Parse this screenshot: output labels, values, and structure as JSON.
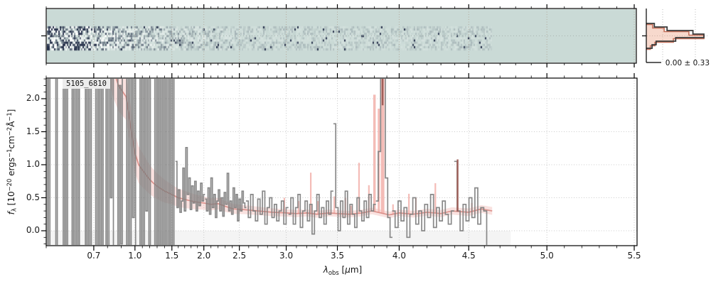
{
  "figure": {
    "annotation": "5105_6810",
    "xlabel_parts": [
      {
        "t": "λ",
        "s": "i"
      },
      {
        "t": "obs",
        "s": "sub"
      },
      {
        "t": " [",
        "s": ""
      },
      {
        "t": "μ",
        "s": "i"
      },
      {
        "t": "m]",
        "s": ""
      }
    ],
    "ylabel_parts": [
      {
        "t": "f",
        "s": "i"
      },
      {
        "t": "λ",
        "s": "sub"
      },
      {
        "t": " [10",
        "s": ""
      },
      {
        "t": "−20",
        "s": "sup"
      },
      {
        "t": " ergs",
        "s": ""
      },
      {
        "t": "−1",
        "s": "sup"
      },
      {
        "t": "cm",
        "s": ""
      },
      {
        "t": "−2",
        "s": "sup"
      },
      {
        "t": "Å",
        "s": ""
      },
      {
        "t": "−1",
        "s": "sup"
      },
      {
        "t": "]",
        "s": ""
      }
    ],
    "colors": {
      "spectrum_gray": "#7f7f7f",
      "model_red": "#d98b85",
      "model_band": "#efa9a2",
      "emission_pink": "#f3b5b0",
      "emission_dark": "#9c5a54",
      "grid": "#c9c9c9",
      "grid_2d": "#b4aa9c",
      "panel_2d_bg": "#cadad6",
      "noise_dark": "#26304a",
      "zero_shade": "#f4f4f4",
      "hist_dark": "#3a3a3a",
      "hist_salmon": "#c4705a",
      "hist_fill": "rgba(235,160,130,0.4)"
    }
  },
  "chart_data": {
    "type": "line",
    "title": "",
    "xlabel": "λ_obs [μm]",
    "ylabel": "f_λ [10^-20 ergs^-1 cm^-2 Å^-1]",
    "xlim": [
      0.6,
      5.52
    ],
    "ylim": [
      -0.23,
      2.31
    ],
    "grid": true,
    "x_ticks": [
      0.7,
      1.0,
      1.5,
      2.0,
      2.5,
      3.0,
      3.5,
      4.0,
      4.5,
      5.0,
      5.5
    ],
    "x_tick_labels": [
      "0.7",
      "1.0",
      "1.5",
      "2.0",
      "2.5",
      "3.0",
      "3.5",
      "4.0",
      "4.5",
      "5.0",
      "5.5"
    ],
    "y_ticks": [
      0.0,
      0.5,
      1.0,
      1.5,
      2.0
    ],
    "y_tick_labels": [
      "0.0",
      "0.5",
      "1.0",
      "1.5",
      "2.0"
    ],
    "x_minor_step": 0.1,
    "axis_note": "non-linear NIRSpec prism wavelength axis; anchors map wavelength (μm) to fractional plot position",
    "wave_to_frac_anchors": [
      [
        0.6,
        0.0
      ],
      [
        0.7,
        0.0805
      ],
      [
        1.0,
        0.1502
      ],
      [
        1.5,
        0.2127
      ],
      [
        2.0,
        0.2668
      ],
      [
        2.5,
        0.3269
      ],
      [
        3.0,
        0.4062
      ],
      [
        3.5,
        0.4928
      ],
      [
        4.0,
        0.5974
      ],
      [
        4.5,
        0.7151
      ],
      [
        5.0,
        0.8474
      ],
      [
        5.5,
        0.9952
      ]
    ],
    "zero_shade_frac_range": [
      0.0,
      0.786
    ],
    "spectrum": {
      "name": "observed flux (gray step)",
      "segments": [
        {
          "start": 0.0,
          "step": 0.0025,
          "values": [
            3,
            -1,
            3,
            -1,
            null,
            null,
            3,
            -1,
            3,
            null,
            null,
            3,
            -1,
            3,
            -1,
            3,
            null,
            3,
            -1,
            3,
            -1,
            3,
            -1,
            3,
            null,
            null,
            3,
            -1,
            3,
            -1,
            3,
            -1,
            null,
            3,
            -1,
            3,
            -1,
            3,
            -1,
            3
          ]
        },
        {
          "start": 0.1,
          "step": 0.0025,
          "values": [
            -1,
            3,
            -1,
            3,
            0.5,
            3,
            -1,
            null,
            3,
            -1,
            2.2,
            -0.2,
            3,
            null,
            3,
            -1,
            3,
            -1,
            2.5,
            0.2,
            3,
            -1,
            null,
            3,
            -0.5,
            3,
            -1,
            3,
            0.3,
            3,
            -1,
            3,
            null,
            3,
            -1,
            3,
            -1,
            3,
            -0.8,
            3,
            -1,
            2.6,
            -0.4,
            3,
            -1,
            3,
            -1,
            3
          ]
        },
        {
          "start": 0.22,
          "step": 0.0025,
          "values": [
            1.05,
            0.35,
            0.62,
            0.28,
            0.45,
            0.95,
            0.3,
            1.26,
            0.55,
            0.8,
            0.32,
            0.68,
            0.42,
            0.75,
            0.3,
            0.6,
            0.38,
            0.72,
            0.45,
            0.55
          ]
        },
        {
          "start": 0.27,
          "step": 0.0025,
          "values": [
            0.48,
            0.3,
            0.65,
            0.25,
            0.8,
            0.35,
            0.55,
            0.2,
            0.45,
            0.62,
            0.3,
            0.5,
            0.22,
            0.58,
            0.4,
            0.87,
            0.3,
            0.45,
            0.25,
            0.65,
            0.35,
            0.55,
            0.15,
            0.48,
            0.3,
            0.6,
            0.42,
            0.35
          ]
        },
        {
          "start": 0.34,
          "step": 0.004,
          "values": [
            0.45,
            0.2,
            0.55,
            0.3,
            0.15,
            0.48,
            0.25,
            0.6,
            0.1,
            0.35,
            0.5,
            0.2,
            0.4,
            0.15,
            0.3,
            0.45,
            0.1,
            0.35
          ]
        },
        {
          "start": 0.412,
          "step": 0.004,
          "values": [
            0.25,
            0.5,
            0.1,
            0.35,
            0.55,
            0.05,
            0.3,
            0.45,
            0.15,
            0.4,
            -0.05,
            0.3,
            0.55,
            0.2,
            0.35,
            0.1,
            0.45,
            0.25,
            0.6
          ]
        },
        {
          "start": 0.488,
          "step": 0.004,
          "values": [
            1.62,
            0.35,
            0.0,
            0.45,
            0.2,
            0.6,
            0.1,
            0.4,
            0.25,
            0.05,
            0.5,
            0.3,
            0.15,
            0.45,
            0.2,
            0.55,
            0.3,
            0.4
          ]
        },
        {
          "start": 0.56,
          "step": 0.004,
          "values": [
            0.45,
            1.2,
            3,
            3,
            0.8,
            0.2,
            -0.1
          ]
        },
        {
          "start": 0.588,
          "step": 0.005,
          "values": [
            0.3,
            0.05,
            0.45,
            0.15,
            0.35,
            -0.1,
            0.25,
            0.5,
            0.1,
            0.3,
            0.0,
            0.4,
            0.2,
            0.55,
            0.05,
            0.35,
            0.15,
            0.45,
            0.25,
            0.1,
            0.3
          ]
        },
        {
          "start": 0.693,
          "step": 0.005,
          "values": [
            1.05,
            0.3,
            0.0,
            0.4,
            0.15,
            0.5,
            0.2,
            0.65,
            0.1,
            0.35,
            0.3,
            -0.25
          ]
        }
      ]
    },
    "model": {
      "name": "model spectrum (red)",
      "x": [
        0.78,
        0.84,
        0.88,
        0.935,
        0.97,
        1.0,
        1.05,
        1.1,
        1.18,
        1.25,
        1.32,
        1.4,
        1.5,
        1.6,
        1.72,
        1.85,
        2.0,
        2.1,
        2.2,
        2.3,
        2.42,
        2.55,
        2.7,
        2.85,
        3.0,
        3.1,
        3.2,
        3.3,
        3.42,
        3.5,
        3.6,
        3.7,
        3.78,
        3.92,
        4.0,
        4.1,
        4.2,
        4.3,
        4.38,
        4.5,
        4.58,
        4.65
      ],
      "y": [
        2.9,
        2.45,
        2.2,
        2.03,
        1.55,
        1.18,
        1.0,
        0.92,
        0.8,
        0.72,
        0.66,
        0.6,
        0.55,
        0.5,
        0.47,
        0.44,
        0.42,
        0.4,
        0.41,
        0.37,
        0.33,
        0.32,
        0.3,
        0.28,
        0.27,
        0.26,
        0.27,
        0.25,
        0.27,
        0.26,
        0.25,
        0.27,
        0.3,
        0.24,
        0.27,
        0.25,
        0.28,
        0.26,
        0.3,
        0.28,
        0.33,
        0.3
      ],
      "band_halfwidth_anchors": [
        [
          0.8,
          0.45
        ],
        [
          1.0,
          0.3
        ],
        [
          1.2,
          0.22
        ],
        [
          1.5,
          0.15
        ],
        [
          2.0,
          0.1
        ],
        [
          2.5,
          0.07
        ],
        [
          3.0,
          0.055
        ],
        [
          3.5,
          0.05
        ],
        [
          4.0,
          0.05
        ],
        [
          4.65,
          0.06
        ]
      ]
    },
    "emission_lines": [
      {
        "wave": 2.23,
        "peak": 0.5
      },
      {
        "wave": 2.98,
        "peak": 0.5
      },
      {
        "wave": 3.12,
        "peak": 0.45
      },
      {
        "wave": 3.24,
        "peak": 0.88
      },
      {
        "wave": 3.31,
        "peak": 0.45
      },
      {
        "wave": 3.47,
        "peak": 0.52
      },
      {
        "wave": 3.565,
        "peak": 0.5
      },
      {
        "wave": 3.61,
        "peak": 0.38
      },
      {
        "wave": 3.675,
        "peak": 1.03
      },
      {
        "wave": 3.755,
        "peak": 0.69
      },
      {
        "wave": 3.8,
        "peak": 2.06,
        "width": 3.5
      },
      {
        "wave": 3.835,
        "peak": 1.85,
        "width": 3
      },
      {
        "wave": 3.866,
        "peak": 2.45,
        "width": 5
      },
      {
        "wave": 3.866,
        "peak": 2.45,
        "base": 1.9,
        "style": "dark",
        "width": 2.5
      },
      {
        "wave": 3.95,
        "peak": 0.4
      },
      {
        "wave": 4.07,
        "peak": 0.56
      },
      {
        "wave": 4.12,
        "peak": 0.5
      },
      {
        "wave": 4.26,
        "peak": 0.72
      },
      {
        "wave": 4.42,
        "peak": 1.08,
        "style": "dark"
      },
      {
        "wave": 4.52,
        "peak": 0.42
      }
    ],
    "spectrum_2d": {
      "description": "2D spectrum strip: speckle noise band, strongest at blue end, fading to the red; band spans the valid data range",
      "band_frac_range": [
        0.0,
        0.756
      ],
      "band_rows": 11
    },
    "residual_hist": {
      "value_label": "0.00 ± 0.33",
      "counts": [
        0.14,
        0.36,
        0.81,
        1.0,
        0.51,
        0.17,
        0.1
      ],
      "counts_model": [
        0.11,
        0.31,
        0.74,
        1.0,
        0.47,
        0.15,
        0.07
      ],
      "orientation": "horizontal"
    }
  }
}
